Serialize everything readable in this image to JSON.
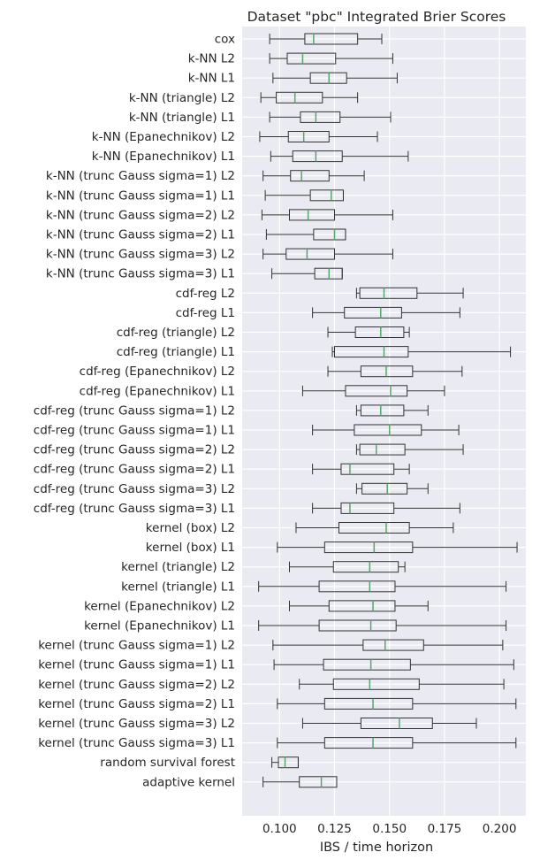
{
  "chart_data": {
    "type": "boxplot",
    "orientation": "horizontal",
    "title": "Dataset \"pbc\" Integrated Brier Scores",
    "xlabel": "IBS / time horizon",
    "ylabel": "",
    "xlim": [
      0.083,
      0.212
    ],
    "xticks": [
      0.1,
      0.125,
      0.15,
      0.175,
      0.2
    ],
    "xtick_labels": [
      "0.100",
      "0.125",
      "0.150",
      "0.175",
      "0.200"
    ],
    "grid": true,
    "colors": {
      "background": "#eaeaf2",
      "grid": "#ffffff",
      "box": "#333333",
      "median": "#55a868"
    },
    "categories": [
      "cox",
      "k-NN L2",
      "k-NN L1",
      "k-NN (triangle) L2",
      "k-NN (triangle) L1",
      "k-NN (Epanechnikov) L2",
      "k-NN (Epanechnikov) L1",
      "k-NN (trunc Gauss sigma=1) L2",
      "k-NN (trunc Gauss sigma=1) L1",
      "k-NN (trunc Gauss sigma=2) L2",
      "k-NN (trunc Gauss sigma=2) L1",
      "k-NN (trunc Gauss sigma=3) L2",
      "k-NN (trunc Gauss sigma=3) L1",
      "cdf-reg L2",
      "cdf-reg L1",
      "cdf-reg (triangle) L2",
      "cdf-reg (triangle) L1",
      "cdf-reg (Epanechnikov) L2",
      "cdf-reg (Epanechnikov) L1",
      "cdf-reg (trunc Gauss sigma=1) L2",
      "cdf-reg (trunc Gauss sigma=1) L1",
      "cdf-reg (trunc Gauss sigma=2) L2",
      "cdf-reg (trunc Gauss sigma=2) L1",
      "cdf-reg (trunc Gauss sigma=3) L2",
      "cdf-reg (trunc Gauss sigma=3) L1",
      "kernel (box) L2",
      "kernel (box) L1",
      "kernel (triangle) L2",
      "kernel (triangle) L1",
      "kernel (Epanechnikov) L2",
      "kernel (Epanechnikov) L1",
      "kernel (trunc Gauss sigma=1) L2",
      "kernel (trunc Gauss sigma=1) L1",
      "kernel (trunc Gauss sigma=2) L2",
      "kernel (trunc Gauss sigma=2) L1",
      "kernel (trunc Gauss sigma=3) L2",
      "kernel (trunc Gauss sigma=3) L1",
      "random survival forest",
      "adaptive kernel"
    ],
    "boxes": [
      {
        "min": 0.0955,
        "q1": 0.1115,
        "median": 0.1155,
        "q3": 0.1355,
        "max": 0.1465
      },
      {
        "min": 0.0955,
        "q1": 0.1035,
        "median": 0.1105,
        "q3": 0.1255,
        "max": 0.1515
      },
      {
        "min": 0.097,
        "q1": 0.114,
        "median": 0.1225,
        "q3": 0.1305,
        "max": 0.1535
      },
      {
        "min": 0.0915,
        "q1": 0.0985,
        "median": 0.107,
        "q3": 0.1195,
        "max": 0.1355
      },
      {
        "min": 0.0955,
        "q1": 0.1095,
        "median": 0.1165,
        "q3": 0.1275,
        "max": 0.1505
      },
      {
        "min": 0.091,
        "q1": 0.104,
        "median": 0.111,
        "q3": 0.1225,
        "max": 0.1445
      },
      {
        "min": 0.096,
        "q1": 0.106,
        "median": 0.1165,
        "q3": 0.1285,
        "max": 0.1585
      },
      {
        "min": 0.0925,
        "q1": 0.105,
        "median": 0.11,
        "q3": 0.1225,
        "max": 0.1385
      },
      {
        "min": 0.0935,
        "q1": 0.114,
        "median": 0.1235,
        "q3": 0.129,
        "max": 0.129
      },
      {
        "min": 0.092,
        "q1": 0.1045,
        "median": 0.113,
        "q3": 0.125,
        "max": 0.1515
      },
      {
        "min": 0.094,
        "q1": 0.1155,
        "median": 0.125,
        "q3": 0.13,
        "max": 0.13
      },
      {
        "min": 0.0925,
        "q1": 0.103,
        "median": 0.1125,
        "q3": 0.125,
        "max": 0.1515
      },
      {
        "min": 0.0965,
        "q1": 0.116,
        "median": 0.1225,
        "q3": 0.1285,
        "max": 0.1285
      },
      {
        "min": 0.135,
        "q1": 0.1365,
        "median": 0.1475,
        "q3": 0.1625,
        "max": 0.1835
      },
      {
        "min": 0.115,
        "q1": 0.1295,
        "median": 0.146,
        "q3": 0.1555,
        "max": 0.182
      },
      {
        "min": 0.122,
        "q1": 0.1345,
        "median": 0.146,
        "q3": 0.1565,
        "max": 0.159
      },
      {
        "min": 0.124,
        "q1": 0.125,
        "median": 0.1475,
        "q3": 0.1585,
        "max": 0.205
      },
      {
        "min": 0.122,
        "q1": 0.137,
        "median": 0.1485,
        "q3": 0.1605,
        "max": 0.183
      },
      {
        "min": 0.1105,
        "q1": 0.13,
        "median": 0.1505,
        "q3": 0.158,
        "max": 0.175
      },
      {
        "min": 0.135,
        "q1": 0.137,
        "median": 0.146,
        "q3": 0.1565,
        "max": 0.1675
      },
      {
        "min": 0.115,
        "q1": 0.134,
        "median": 0.15,
        "q3": 0.1645,
        "max": 0.1815
      },
      {
        "min": 0.135,
        "q1": 0.1365,
        "median": 0.144,
        "q3": 0.157,
        "max": 0.1835
      },
      {
        "min": 0.115,
        "q1": 0.128,
        "median": 0.132,
        "q3": 0.152,
        "max": 0.159
      },
      {
        "min": 0.135,
        "q1": 0.1375,
        "median": 0.149,
        "q3": 0.158,
        "max": 0.1675
      },
      {
        "min": 0.115,
        "q1": 0.128,
        "median": 0.132,
        "q3": 0.152,
        "max": 0.182
      },
      {
        "min": 0.1075,
        "q1": 0.127,
        "median": 0.1485,
        "q3": 0.159,
        "max": 0.179
      },
      {
        "min": 0.099,
        "q1": 0.1205,
        "median": 0.143,
        "q3": 0.1605,
        "max": 0.208
      },
      {
        "min": 0.1045,
        "q1": 0.1245,
        "median": 0.141,
        "q3": 0.154,
        "max": 0.157
      },
      {
        "min": 0.0905,
        "q1": 0.118,
        "median": 0.141,
        "q3": 0.1525,
        "max": 0.203
      },
      {
        "min": 0.1045,
        "q1": 0.1225,
        "median": 0.1425,
        "q3": 0.1525,
        "max": 0.1675
      },
      {
        "min": 0.0905,
        "q1": 0.118,
        "median": 0.1415,
        "q3": 0.153,
        "max": 0.203
      },
      {
        "min": 0.097,
        "q1": 0.138,
        "median": 0.148,
        "q3": 0.1655,
        "max": 0.2015
      },
      {
        "min": 0.0975,
        "q1": 0.12,
        "median": 0.1415,
        "q3": 0.1595,
        "max": 0.2065
      },
      {
        "min": 0.109,
        "q1": 0.1245,
        "median": 0.141,
        "q3": 0.1635,
        "max": 0.202
      },
      {
        "min": 0.099,
        "q1": 0.1205,
        "median": 0.1425,
        "q3": 0.1605,
        "max": 0.2075
      },
      {
        "min": 0.1105,
        "q1": 0.137,
        "median": 0.1545,
        "q3": 0.1695,
        "max": 0.1895
      },
      {
        "min": 0.099,
        "q1": 0.1205,
        "median": 0.1425,
        "q3": 0.1605,
        "max": 0.2075
      },
      {
        "min": 0.0965,
        "q1": 0.0995,
        "median": 0.1025,
        "q3": 0.1085,
        "max": 0.1085
      },
      {
        "min": 0.0925,
        "q1": 0.109,
        "median": 0.119,
        "q3": 0.126,
        "max": 0.126
      }
    ]
  }
}
